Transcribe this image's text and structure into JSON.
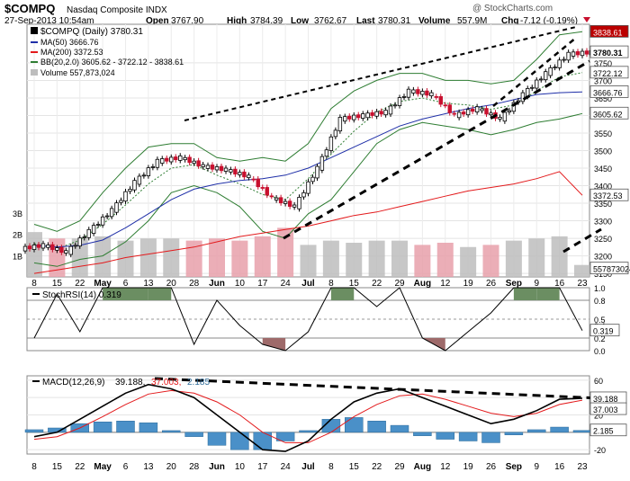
{
  "header": {
    "symbol": "$COMPQ",
    "name": "Nasdaq Composite INDX",
    "watermark": "@ StockCharts.com",
    "date": "27-Sep-2013 10:54am",
    "quote": {
      "open": "3767.90",
      "high": "3784.39",
      "low": "3762.67",
      "last": "3780.31",
      "volume": "557.9M",
      "chg": "-7.12 (-0.19%)"
    },
    "labels": {
      "open": "Open",
      "high": "High",
      "low": "Low",
      "last": "Last",
      "volume": "Volume",
      "chg": "Chg"
    }
  },
  "legend": {
    "main": "$COMPQ (Daily) 3780.31",
    "ma50": "MA(50) 3666.76",
    "ma200": "MA(200) 3372.53",
    "bb": "BB(20,2.0) 3605.62 - 3722.12 - 3838.61",
    "volume": "Volume 557,873,024"
  },
  "price_axis": {
    "ticks": [
      "3150",
      "3200",
      "3250",
      "3300",
      "3350",
      "3400",
      "3450",
      "3500",
      "3550",
      "3600",
      "3650",
      "3700",
      "3750"
    ],
    "badges": [
      {
        "text": "3838.61",
        "value": 3838.61,
        "kind": "dark"
      },
      {
        "text": "3780.31",
        "value": 3780.31,
        "kind": "last"
      },
      {
        "text": "3722.12",
        "value": 3722.12,
        "kind": "plain"
      },
      {
        "text": "3666.76",
        "value": 3666.76,
        "kind": "plain"
      },
      {
        "text": "3605.62",
        "value": 3605.62,
        "kind": "plain"
      },
      {
        "text": "3372.53",
        "value": 3372.53,
        "kind": "plain"
      },
      {
        "text": "557873024",
        "value": 3164,
        "kind": "plain"
      }
    ],
    "volume_ticks": [
      "3B",
      "2B",
      "1B"
    ]
  },
  "stoch": {
    "legend": "StochRSI(14) 0.319",
    "ticks": [
      "1.0",
      "0.8",
      "0.5",
      "0.4",
      "0.2",
      "0.0"
    ],
    "badge": "0.319"
  },
  "macd": {
    "legend_label": "MACD(12,26,9)",
    "legend_macd": "39.188,",
    "legend_signal": "37.003,",
    "legend_hist": "2.185",
    "ticks": [
      "60",
      "40",
      "20",
      "0",
      "-20"
    ],
    "badges": [
      "39.188",
      "37.003",
      "2.185"
    ]
  },
  "x_axis": {
    "labels": [
      {
        "text": "8",
        "bold": false
      },
      {
        "text": "15",
        "bold": false
      },
      {
        "text": "22",
        "bold": false
      },
      {
        "text": "May",
        "bold": true
      },
      {
        "text": "6",
        "bold": false
      },
      {
        "text": "13",
        "bold": false
      },
      {
        "text": "20",
        "bold": false
      },
      {
        "text": "28",
        "bold": false
      },
      {
        "text": "Jun",
        "bold": true
      },
      {
        "text": "10",
        "bold": false
      },
      {
        "text": "17",
        "bold": false
      },
      {
        "text": "24",
        "bold": false
      },
      {
        "text": "Jul",
        "bold": true
      },
      {
        "text": "8",
        "bold": false
      },
      {
        "text": "15",
        "bold": false
      },
      {
        "text": "22",
        "bold": false
      },
      {
        "text": "29",
        "bold": false
      },
      {
        "text": "Aug",
        "bold": true
      },
      {
        "text": "12",
        "bold": false
      },
      {
        "text": "19",
        "bold": false
      },
      {
        "text": "26",
        "bold": false
      },
      {
        "text": "Sep",
        "bold": true
      },
      {
        "text": "9",
        "bold": false
      },
      {
        "text": "16",
        "bold": false
      },
      {
        "text": "23",
        "bold": false
      }
    ]
  },
  "colors": {
    "up": "#000000",
    "down": "#c8102e",
    "ma50": "#1f2fa8",
    "ma200": "#e31a1c",
    "bb": "#2e7d32",
    "vol_up": "#bdbdbd",
    "vol_down": "#e8a0aa",
    "stoch_fill_hi": "#6b8e62",
    "stoch_fill_lo": "#9e6a6a",
    "macd": "#000000",
    "signal": "#e31a1c",
    "hist": "#4a90c8"
  },
  "chart_data": {
    "type": "candlestick",
    "title": "$COMPQ Nasdaq Composite INDX",
    "panels": [
      "price",
      "volume",
      "stochrsi",
      "macd"
    ],
    "x": [
      "2013-04-08",
      "2013-04-15",
      "2013-04-22",
      "2013-04-29",
      "2013-05-06",
      "2013-05-13",
      "2013-05-20",
      "2013-05-28",
      "2013-06-03",
      "2013-06-10",
      "2013-06-17",
      "2013-06-24",
      "2013-07-01",
      "2013-07-08",
      "2013-07-15",
      "2013-07-22",
      "2013-07-29",
      "2013-08-05",
      "2013-08-12",
      "2013-08-19",
      "2013-08-26",
      "2013-09-02",
      "2013-09-09",
      "2013-09-16",
      "2013-09-23"
    ],
    "price_close_weekly": [
      3230,
      3210,
      3270,
      3330,
      3410,
      3470,
      3480,
      3455,
      3445,
      3425,
      3365,
      3340,
      3450,
      3590,
      3600,
      3610,
      3670,
      3660,
      3600,
      3620,
      3590,
      3660,
      3720,
      3775,
      3780
    ],
    "ma50": [
      3230,
      3225,
      3230,
      3245,
      3280,
      3320,
      3360,
      3390,
      3405,
      3415,
      3420,
      3430,
      3450,
      3480,
      3510,
      3540,
      3570,
      3590,
      3605,
      3620,
      3630,
      3645,
      3660,
      3665,
      3667
    ],
    "ma200": [
      3150,
      3160,
      3170,
      3180,
      3195,
      3205,
      3215,
      3225,
      3240,
      3255,
      3265,
      3275,
      3285,
      3300,
      3315,
      3325,
      3340,
      3355,
      3370,
      3385,
      3395,
      3405,
      3420,
      3440,
      3372.53
    ],
    "bb_upper": [
      3290,
      3270,
      3300,
      3380,
      3450,
      3510,
      3520,
      3520,
      3480,
      3470,
      3480,
      3470,
      3520,
      3620,
      3670,
      3700,
      3720,
      3720,
      3700,
      3700,
      3690,
      3700,
      3760,
      3830,
      3838.61
    ],
    "bb_lower": [
      3180,
      3170,
      3190,
      3200,
      3240,
      3300,
      3380,
      3400,
      3380,
      3340,
      3270,
      3250,
      3320,
      3360,
      3440,
      3520,
      3560,
      3580,
      3570,
      3560,
      3545,
      3560,
      3580,
      3590,
      3605.62
    ],
    "volume_billions": [
      2.1,
      1.8,
      1.8,
      1.9,
      1.7,
      1.8,
      1.8,
      1.7,
      1.8,
      1.7,
      1.9,
      2.3,
      1.5,
      1.7,
      1.6,
      1.7,
      1.7,
      1.5,
      1.6,
      1.4,
      1.5,
      1.7,
      1.8,
      1.9,
      0.56
    ],
    "stochrsi": [
      0.2,
      0.9,
      0.3,
      1.0,
      1.0,
      1.0,
      1.0,
      0.1,
      0.8,
      0.4,
      0.1,
      0.0,
      0.3,
      1.0,
      1.0,
      0.7,
      1.0,
      0.2,
      0.0,
      0.3,
      0.6,
      1.0,
      1.0,
      1.0,
      0.319
    ],
    "macd_line": [
      -5,
      0,
      15,
      30,
      45,
      55,
      50,
      40,
      20,
      0,
      -20,
      -22,
      -10,
      15,
      35,
      45,
      50,
      40,
      30,
      20,
      10,
      15,
      25,
      38,
      39.188
    ],
    "macd_signal": [
      -8,
      -5,
      5,
      18,
      32,
      44,
      48,
      45,
      35,
      20,
      0,
      -12,
      -12,
      0,
      18,
      32,
      42,
      44,
      38,
      30,
      22,
      18,
      22,
      32,
      37.003
    ],
    "macd_hist": [
      3,
      5,
      10,
      12,
      13,
      11,
      2,
      -5,
      -15,
      -20,
      -20,
      -10,
      2,
      15,
      17,
      13,
      8,
      -4,
      -8,
      -10,
      -12,
      -3,
      3,
      6,
      2.185
    ]
  }
}
